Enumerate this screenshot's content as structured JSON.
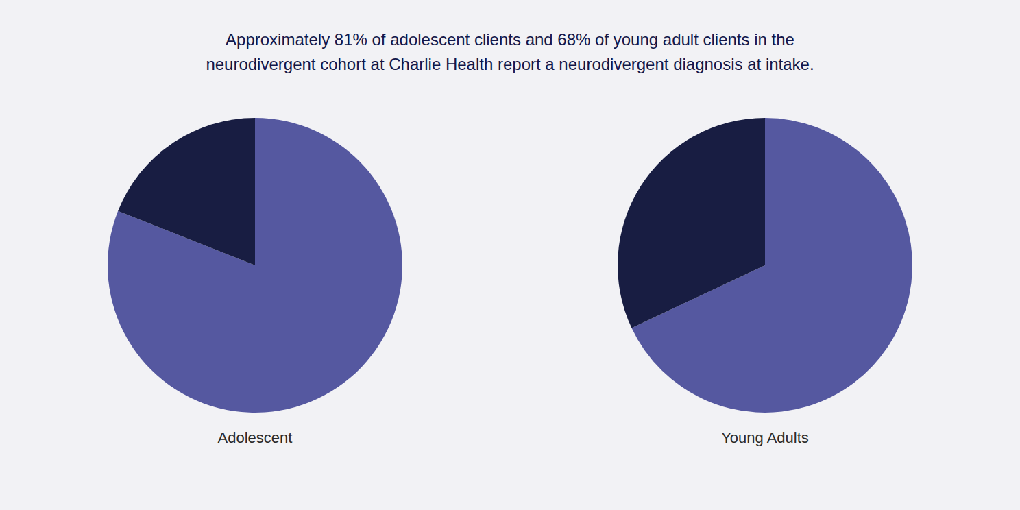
{
  "chart_data": {
    "type": "pie",
    "title": "Approximately 81% of adolescent clients and 68% of young adult clients in the\nneurodivergent cohort at Charlie Health report a neurodivergent diagnosis at intake.",
    "series": [
      {
        "name": "Adolescent",
        "values": [
          81,
          19
        ],
        "colors": [
          "#5558a0",
          "#181d42"
        ]
      },
      {
        "name": "Young Adults",
        "values": [
          68,
          32
        ],
        "colors": [
          "#5558a0",
          "#181d42"
        ]
      }
    ]
  }
}
